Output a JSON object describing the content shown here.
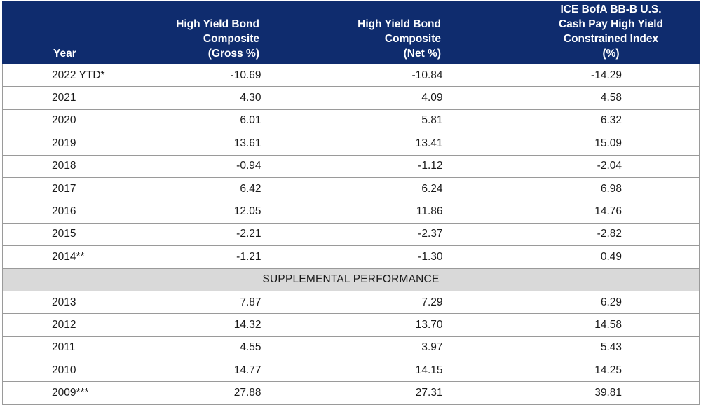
{
  "chart_data": {
    "type": "table",
    "columns": [
      "Year",
      "High Yield Bond Composite (Gross %)",
      "High Yield Bond Composite (Net %)",
      "ICE BofA BB-B U.S. Cash Pay High Yield Constrained Index (%)"
    ],
    "header_lines": {
      "year": [
        "Year"
      ],
      "gross": [
        "High Yield Bond",
        "Composite",
        "(Gross %)"
      ],
      "net": [
        "High Yield Bond",
        "Composite",
        "(Net %)"
      ],
      "index": [
        "ICE BofA BB-B U.S.",
        "Cash Pay High Yield",
        "Constrained Index (%)"
      ]
    },
    "rows": [
      {
        "year": "2022 YTD*",
        "gross": "-10.69",
        "net": "-10.84",
        "index": "-14.29"
      },
      {
        "year": "2021",
        "gross": "4.30",
        "net": "4.09",
        "index": "4.58"
      },
      {
        "year": "2020",
        "gross": "6.01",
        "net": "5.81",
        "index": "6.32"
      },
      {
        "year": "2019",
        "gross": "13.61",
        "net": "13.41",
        "index": "15.09"
      },
      {
        "year": "2018",
        "gross": "-0.94",
        "net": "-1.12",
        "index": "-2.04"
      },
      {
        "year": "2017",
        "gross": "6.42",
        "net": "6.24",
        "index": "6.98"
      },
      {
        "year": "2016",
        "gross": "12.05",
        "net": "11.86",
        "index": "14.76"
      },
      {
        "year": "2015",
        "gross": "-2.21",
        "net": "-2.37",
        "index": "-2.82"
      },
      {
        "year": "2014**",
        "gross": "-1.21",
        "net": "-1.30",
        "index": "0.49"
      }
    ],
    "section_label": "SUPPLEMENTAL PERFORMANCE",
    "supplemental_rows": [
      {
        "year": "2013",
        "gross": "7.87",
        "net": "7.29",
        "index": "6.29"
      },
      {
        "year": "2012",
        "gross": "14.32",
        "net": "13.70",
        "index": "14.58"
      },
      {
        "year": "2011",
        "gross": "4.55",
        "net": "3.97",
        "index": "5.43"
      },
      {
        "year": "2010",
        "gross": "14.77",
        "net": "14.15",
        "index": "14.25"
      },
      {
        "year": "2009***",
        "gross": "27.88",
        "net": "27.31",
        "index": "39.81"
      }
    ],
    "colors": {
      "header_bg": "#0f2c6e",
      "header_text": "#ffffff",
      "section_bg": "#d9d9d9",
      "grid": "#9a9a9a"
    }
  }
}
